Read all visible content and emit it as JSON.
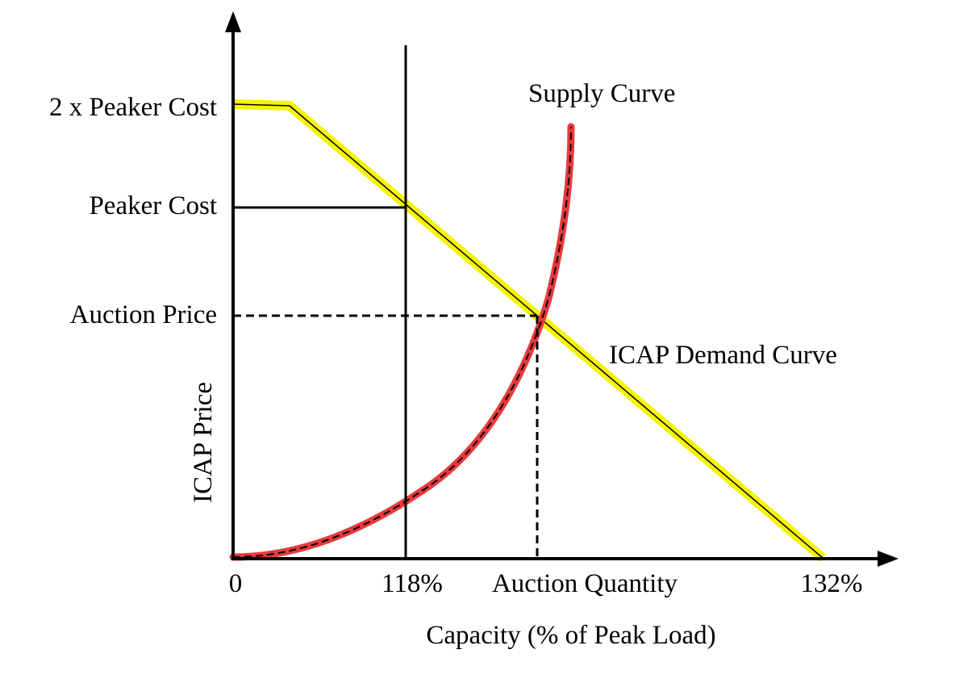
{
  "diagram": {
    "y_axis_label": "ICAP Price",
    "x_axis_label": "Capacity (% of Peak Load)",
    "price_levels": {
      "double_peaker": "2 x Peaker Cost",
      "peaker": "Peaker Cost",
      "auction_price": "Auction Price"
    },
    "x_ticks": {
      "origin": "0",
      "reserve_margin": "118%",
      "auction_quantity": "Auction Quantity",
      "max_capacity": "132%"
    },
    "curves": {
      "supply": {
        "label": "Supply Curve",
        "color": "#e8393c"
      },
      "demand": {
        "label": "ICAP Demand Curve",
        "color": "#f5f500"
      }
    }
  }
}
